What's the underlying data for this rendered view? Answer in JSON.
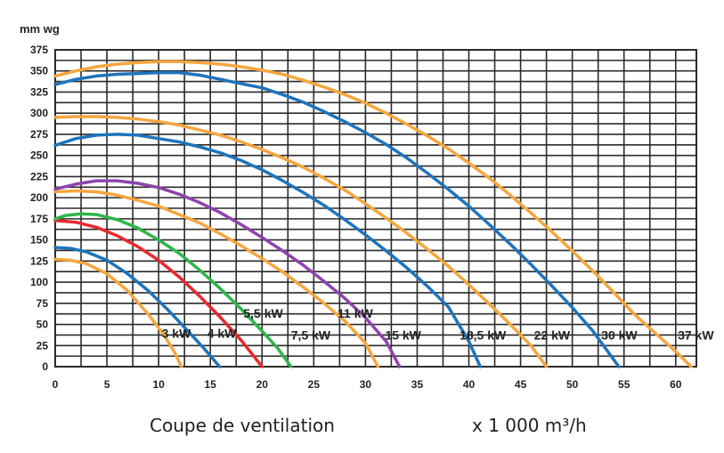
{
  "chart_data": {
    "type": "line",
    "ylabel": "mm wg",
    "xlabel": "Coupe de ventilation",
    "x_unit_label": "x 1 000 m³/h",
    "xlim": [
      0,
      62
    ],
    "ylim": [
      0,
      375
    ],
    "x_ticks": [
      0,
      5,
      10,
      15,
      20,
      25,
      30,
      35,
      40,
      45,
      50,
      55,
      60
    ],
    "y_ticks": [
      0,
      25,
      50,
      75,
      100,
      125,
      150,
      175,
      200,
      225,
      250,
      275,
      300,
      325,
      350,
      375
    ],
    "grid": true,
    "series": [
      {
        "name": "3 kW",
        "color": "#f5a640",
        "points": [
          [
            0,
            127
          ],
          [
            1.5,
            126
          ],
          [
            3,
            122
          ],
          [
            5,
            110
          ],
          [
            7,
            90
          ],
          [
            9,
            62
          ],
          [
            10.5,
            38
          ],
          [
            11.5,
            18
          ],
          [
            12.2,
            0
          ]
        ]
      },
      {
        "name": "4 kW",
        "color": "#1f74bc",
        "points": [
          [
            0,
            141
          ],
          [
            1.5,
            140
          ],
          [
            3,
            136
          ],
          [
            5,
            126
          ],
          [
            7,
            110
          ],
          [
            9,
            90
          ],
          [
            11,
            66
          ],
          [
            13,
            40
          ],
          [
            14.5,
            20
          ],
          [
            15.9,
            0
          ]
        ]
      },
      {
        "name": "5,5 kW",
        "color": "#e8292e",
        "points": [
          [
            0,
            173
          ],
          [
            2,
            171
          ],
          [
            4,
            165
          ],
          [
            6,
            155
          ],
          [
            8,
            142
          ],
          [
            10,
            126
          ],
          [
            12,
            106
          ],
          [
            14,
            83
          ],
          [
            16,
            58
          ],
          [
            18,
            31
          ],
          [
            20,
            0
          ]
        ]
      },
      {
        "name": "7,5 kW",
        "color": "#2fb64a",
        "points": [
          [
            0,
            175
          ],
          [
            1,
            179
          ],
          [
            2.5,
            181
          ],
          [
            4,
            180
          ],
          [
            6,
            174
          ],
          [
            8,
            164
          ],
          [
            10,
            150
          ],
          [
            12,
            134
          ],
          [
            14,
            114
          ],
          [
            16,
            92
          ],
          [
            18,
            68
          ],
          [
            20,
            42
          ],
          [
            21.5,
            22
          ],
          [
            22.8,
            0
          ]
        ]
      },
      {
        "name": "11 kW",
        "color": "#f5a640",
        "points": [
          [
            0,
            207
          ],
          [
            2,
            208
          ],
          [
            4,
            207
          ],
          [
            6,
            203
          ],
          [
            8,
            197
          ],
          [
            10,
            190
          ],
          [
            12,
            180
          ],
          [
            14,
            170
          ],
          [
            16,
            157
          ],
          [
            18,
            143
          ],
          [
            20,
            128
          ],
          [
            22,
            112
          ],
          [
            24,
            94
          ],
          [
            26,
            75
          ],
          [
            28,
            54
          ],
          [
            30,
            28
          ],
          [
            31.2,
            0
          ]
        ]
      },
      {
        "name": "15 kW",
        "color": "#8e44ad",
        "points": [
          [
            0,
            210
          ],
          [
            2,
            216
          ],
          [
            4,
            220
          ],
          [
            6,
            220
          ],
          [
            8,
            217
          ],
          [
            10,
            212
          ],
          [
            12,
            204
          ],
          [
            14,
            194
          ],
          [
            16,
            182
          ],
          [
            18,
            168
          ],
          [
            20,
            153
          ],
          [
            22,
            137
          ],
          [
            24,
            120
          ],
          [
            26,
            101
          ],
          [
            28,
            81
          ],
          [
            30,
            58
          ],
          [
            32,
            30
          ],
          [
            33.3,
            0
          ]
        ]
      },
      {
        "name": "18,5 kW",
        "color": "#1f74bc",
        "points": [
          [
            0,
            262
          ],
          [
            2,
            270
          ],
          [
            4,
            274
          ],
          [
            6,
            275
          ],
          [
            8,
            274
          ],
          [
            10,
            270
          ],
          [
            12,
            266
          ],
          [
            14,
            260
          ],
          [
            16,
            253
          ],
          [
            18,
            244
          ],
          [
            20,
            233
          ],
          [
            22,
            220
          ],
          [
            24,
            206
          ],
          [
            26,
            191
          ],
          [
            28,
            174
          ],
          [
            30,
            156
          ],
          [
            32,
            137
          ],
          [
            34,
            117
          ],
          [
            36,
            95
          ],
          [
            38,
            71
          ],
          [
            40,
            30
          ],
          [
            41.1,
            0
          ]
        ]
      },
      {
        "name": "22 kW",
        "color": "#f5a640",
        "points": [
          [
            0,
            295
          ],
          [
            2,
            296
          ],
          [
            4,
            296
          ],
          [
            6,
            295
          ],
          [
            8,
            293
          ],
          [
            10,
            290
          ],
          [
            12,
            286
          ],
          [
            14,
            280
          ],
          [
            16,
            274
          ],
          [
            18,
            266
          ],
          [
            20,
            257
          ],
          [
            22,
            247
          ],
          [
            24,
            236
          ],
          [
            26,
            223
          ],
          [
            28,
            209
          ],
          [
            30,
            193
          ],
          [
            32,
            176
          ],
          [
            34,
            158
          ],
          [
            36,
            139
          ],
          [
            38,
            119
          ],
          [
            40,
            97
          ],
          [
            42,
            74
          ],
          [
            44,
            50
          ],
          [
            46,
            25
          ],
          [
            47.5,
            0
          ]
        ]
      },
      {
        "name": "30 kW",
        "color": "#1f74bc",
        "points": [
          [
            0,
            334
          ],
          [
            2,
            340
          ],
          [
            4,
            344
          ],
          [
            6,
            346
          ],
          [
            8,
            347
          ],
          [
            10,
            348
          ],
          [
            12,
            348
          ],
          [
            14,
            345
          ],
          [
            16,
            340
          ],
          [
            18,
            335
          ],
          [
            20,
            330
          ],
          [
            22,
            322
          ],
          [
            24,
            313
          ],
          [
            26,
            302
          ],
          [
            28,
            290
          ],
          [
            30,
            277
          ],
          [
            32,
            263
          ],
          [
            34,
            247
          ],
          [
            36,
            229
          ],
          [
            38,
            210
          ],
          [
            40,
            190
          ],
          [
            42,
            168
          ],
          [
            44,
            145
          ],
          [
            46,
            121
          ],
          [
            48,
            96
          ],
          [
            50,
            70
          ],
          [
            52,
            42
          ],
          [
            54.5,
            0
          ]
        ]
      },
      {
        "name": "37 kW",
        "color": "#f5a640",
        "points": [
          [
            0,
            344
          ],
          [
            2,
            350
          ],
          [
            4,
            355
          ],
          [
            6,
            358
          ],
          [
            8,
            360
          ],
          [
            10,
            361
          ],
          [
            12,
            361
          ],
          [
            14,
            360
          ],
          [
            16,
            358
          ],
          [
            18,
            355
          ],
          [
            20,
            351
          ],
          [
            22,
            346
          ],
          [
            24,
            339
          ],
          [
            26,
            331
          ],
          [
            28,
            322
          ],
          [
            30,
            312
          ],
          [
            32,
            300
          ],
          [
            34,
            287
          ],
          [
            36,
            273
          ],
          [
            38,
            258
          ],
          [
            40,
            241
          ],
          [
            42,
            223
          ],
          [
            44,
            203
          ],
          [
            46,
            182
          ],
          [
            48,
            160
          ],
          [
            50,
            137
          ],
          [
            52,
            113
          ],
          [
            54,
            88
          ],
          [
            56,
            62
          ],
          [
            58,
            40
          ],
          [
            60,
            18
          ],
          [
            61.5,
            0
          ]
        ]
      }
    ],
    "labels": [
      {
        "text": "3 kW",
        "x": 10.3,
        "y": 34,
        "color": "#222222"
      },
      {
        "text": "4 kW",
        "x": 14.7,
        "y": 34,
        "color": "#222222"
      },
      {
        "text": "5,5 kW",
        "x": 18.2,
        "y": 58,
        "color": "#222222"
      },
      {
        "text": "7,5 kW",
        "x": 22.8,
        "y": 32,
        "color": "#222222"
      },
      {
        "text": "11 kW",
        "x": 27.3,
        "y": 58,
        "color": "#222222"
      },
      {
        "text": "15 kW",
        "x": 31.9,
        "y": 32,
        "color": "#222222"
      },
      {
        "text": "18,5 kW",
        "x": 39.1,
        "y": 32,
        "color": "#222222"
      },
      {
        "text": "22 kW",
        "x": 46.3,
        "y": 32,
        "color": "#222222"
      },
      {
        "text": "30 kW",
        "x": 52.8,
        "y": 32,
        "color": "#222222"
      },
      {
        "text": "37 kW",
        "x": 60.2,
        "y": 32,
        "color": "#222222"
      }
    ]
  }
}
